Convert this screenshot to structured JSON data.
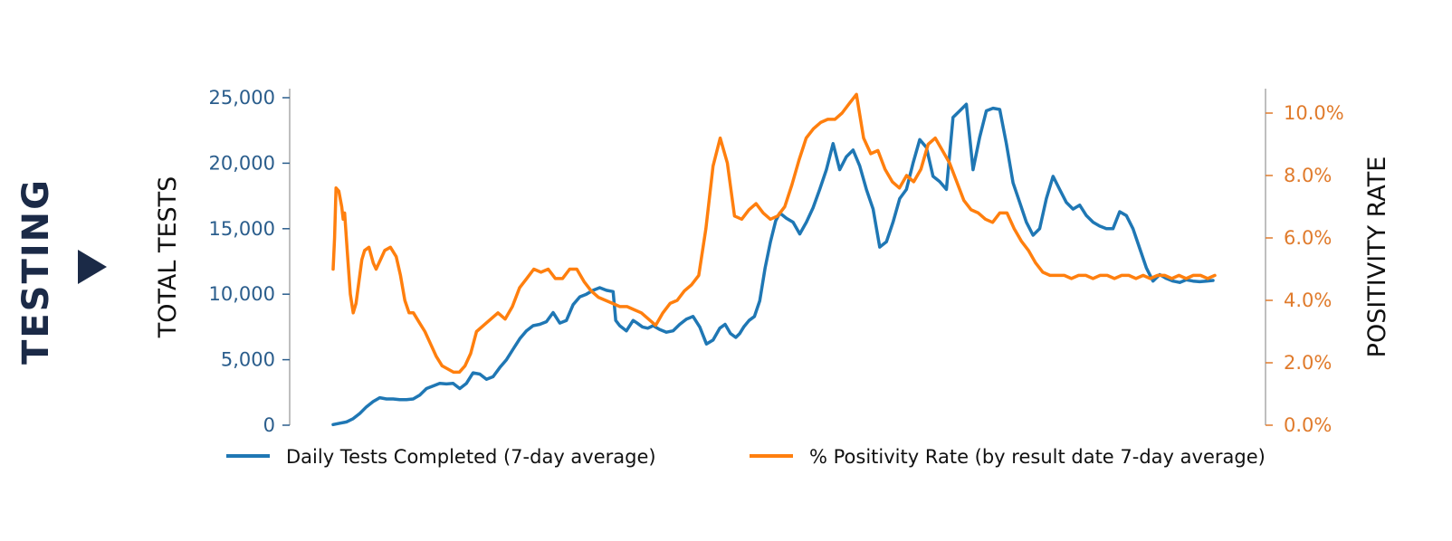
{
  "section_label": "TESTING",
  "colors": {
    "tests": "#1f77b4",
    "positivity": "#ff7f0e",
    "left_ticks": "#2a5d8c",
    "right_ticks": "#e07b2c",
    "marker": "#1b2a47"
  },
  "chart_data": {
    "type": "line",
    "ylabel": "TOTAL TESTS",
    "y2label": "POSITIVITY RATE",
    "ylim": [
      0,
      25000
    ],
    "y2lim": [
      0,
      10.5
    ],
    "yticks": [
      "0",
      "5,000",
      "10,000",
      "15,000",
      "20,000",
      "25,000"
    ],
    "y2ticks": [
      "0.0%",
      "2.0%",
      "4.0%",
      "6.0%",
      "8.0%",
      "10.0%"
    ],
    "grid": false,
    "legend": "bottom",
    "series": [
      {
        "name": "Daily Tests Completed (7-day average)",
        "axis": "left",
        "x": [
          0,
          5,
          10,
          15,
          20,
          25,
          30,
          35,
          40,
          45,
          50,
          55,
          60,
          65,
          70,
          75,
          80,
          85,
          90,
          95,
          100,
          105,
          110,
          115,
          120,
          125,
          130,
          135,
          140,
          145,
          150,
          155,
          160,
          165,
          170,
          175,
          180,
          185,
          190,
          195,
          200,
          205,
          210,
          212,
          215,
          220,
          225,
          228,
          232,
          236,
          240,
          245,
          250,
          255,
          260,
          265,
          270,
          275,
          280,
          285,
          290,
          294,
          298,
          302,
          305,
          308,
          312,
          316,
          320,
          324,
          328,
          332,
          335,
          340,
          345,
          350,
          355,
          360,
          365,
          370,
          375,
          380,
          385,
          390,
          395,
          400,
          405,
          410,
          415,
          420,
          425,
          430,
          435,
          440,
          445,
          450,
          455,
          460,
          465,
          470,
          475,
          480,
          485,
          490,
          495,
          500,
          505,
          510,
          515,
          520,
          525,
          530,
          535,
          540,
          545,
          550,
          555,
          560,
          565,
          570,
          575,
          580,
          585,
          590,
          595,
          600,
          605,
          610,
          615,
          620,
          625,
          630,
          635,
          640,
          645,
          650,
          655,
          660
        ],
        "values": [
          50,
          150,
          250,
          500,
          900,
          1400,
          1800,
          2100,
          2000,
          2000,
          1950,
          1950,
          2000,
          2300,
          2800,
          3000,
          3200,
          3150,
          3200,
          2800,
          3200,
          4000,
          3900,
          3500,
          3700,
          4400,
          5000,
          5800,
          6600,
          7200,
          7600,
          7700,
          7900,
          8600,
          7800,
          8000,
          9200,
          9800,
          10000,
          10300,
          10500,
          10300,
          10200,
          8000,
          7600,
          7200,
          8000,
          7800,
          7500,
          7400,
          7600,
          7300,
          7100,
          7200,
          7700,
          8100,
          8300,
          7500,
          6200,
          6500,
          7400,
          7700,
          7000,
          6700,
          7000,
          7500,
          8000,
          8300,
          9500,
          12000,
          14000,
          15600,
          16200,
          15800,
          15500,
          14600,
          15500,
          16600,
          18000,
          19500,
          21500,
          19500,
          20500,
          21000,
          19800,
          18000,
          16500,
          13600,
          14000,
          15500,
          17300,
          18000,
          20000,
          21800,
          21200,
          19000,
          18600,
          18000,
          23500,
          24000,
          24500,
          19500,
          22000,
          24000,
          24200,
          24100,
          21500,
          18500,
          17000,
          15500,
          14500,
          15000,
          17300,
          19000,
          18000,
          17000,
          16500,
          16800,
          16000,
          15500,
          15200,
          15000,
          15000,
          16300,
          16000,
          15000,
          13500,
          12000,
          11000,
          11500,
          11200,
          11000,
          10900,
          11100,
          11000,
          10950,
          11000,
          11050
        ],
        "xmax": 660
      },
      {
        "name": "% Positivity Rate (by result date 7-day average)",
        "axis": "right",
        "x": [
          0,
          1,
          2,
          4,
          6,
          7,
          8,
          10,
          12,
          14,
          16,
          18,
          20,
          22,
          25,
          28,
          30,
          33,
          36,
          40,
          44,
          47,
          50,
          53,
          56,
          60,
          64,
          68,
          72,
          76,
          80,
          84,
          88,
          92,
          96,
          100,
          105,
          110,
          115,
          120,
          125,
          130,
          135,
          140,
          145,
          150,
          155,
          160,
          165,
          170,
          175,
          180,
          185,
          190,
          195,
          200,
          205,
          210,
          215,
          220,
          225,
          230,
          235,
          240,
          245,
          250,
          255,
          260,
          265,
          270,
          275,
          280,
          285,
          290,
          295,
          300,
          305,
          310,
          315,
          320,
          325,
          330,
          335,
          340,
          345,
          350,
          355,
          360,
          365,
          370,
          375,
          380,
          385,
          390,
          395,
          400,
          405,
          410,
          415,
          420,
          425,
          430,
          435,
          440,
          445,
          450,
          455,
          460,
          465,
          470,
          475,
          480,
          485,
          490,
          495,
          500,
          505,
          510,
          515,
          520,
          525,
          530,
          535,
          540,
          545,
          550,
          555,
          560,
          565,
          570,
          575,
          580,
          585,
          590,
          595,
          600,
          605,
          610,
          615
        ],
        "values": [
          5.0,
          6.0,
          7.6,
          7.5,
          7.0,
          6.6,
          6.8,
          5.5,
          4.2,
          3.6,
          3.9,
          4.6,
          5.3,
          5.6,
          5.7,
          5.2,
          5.0,
          5.3,
          5.6,
          5.7,
          5.4,
          4.8,
          4.0,
          3.6,
          3.6,
          3.3,
          3.0,
          2.6,
          2.2,
          1.9,
          1.8,
          1.7,
          1.7,
          1.9,
          2.3,
          3.0,
          3.2,
          3.4,
          3.6,
          3.4,
          3.8,
          4.4,
          4.7,
          5.0,
          4.9,
          5.0,
          4.7,
          4.7,
          5.0,
          5.0,
          4.6,
          4.3,
          4.1,
          4.0,
          3.9,
          3.8,
          3.8,
          3.7,
          3.6,
          3.4,
          3.2,
          3.6,
          3.9,
          4.0,
          4.3,
          4.5,
          4.8,
          6.3,
          8.3,
          9.2,
          8.4,
          6.7,
          6.6,
          6.9,
          7.1,
          6.8,
          6.6,
          6.7,
          7.0,
          7.7,
          8.5,
          9.2,
          9.5,
          9.7,
          9.8,
          9.8,
          10.0,
          10.3,
          10.6,
          9.2,
          8.7,
          8.8,
          8.2,
          7.8,
          7.6,
          8.0,
          7.8,
          8.2,
          9.0,
          9.2,
          8.8,
          8.4,
          7.8,
          7.2,
          6.9,
          6.8,
          6.6,
          6.5,
          6.8,
          6.8,
          6.3,
          5.9,
          5.6,
          5.2,
          4.9,
          4.8,
          4.8,
          4.8,
          4.7,
          4.8,
          4.8,
          4.7,
          4.8,
          4.8,
          4.7,
          4.8,
          4.8,
          4.7,
          4.8,
          4.7,
          4.8,
          4.8,
          4.7,
          4.8,
          4.7,
          4.8,
          4.8,
          4.7,
          4.8
        ],
        "xmax": 615
      }
    ]
  }
}
